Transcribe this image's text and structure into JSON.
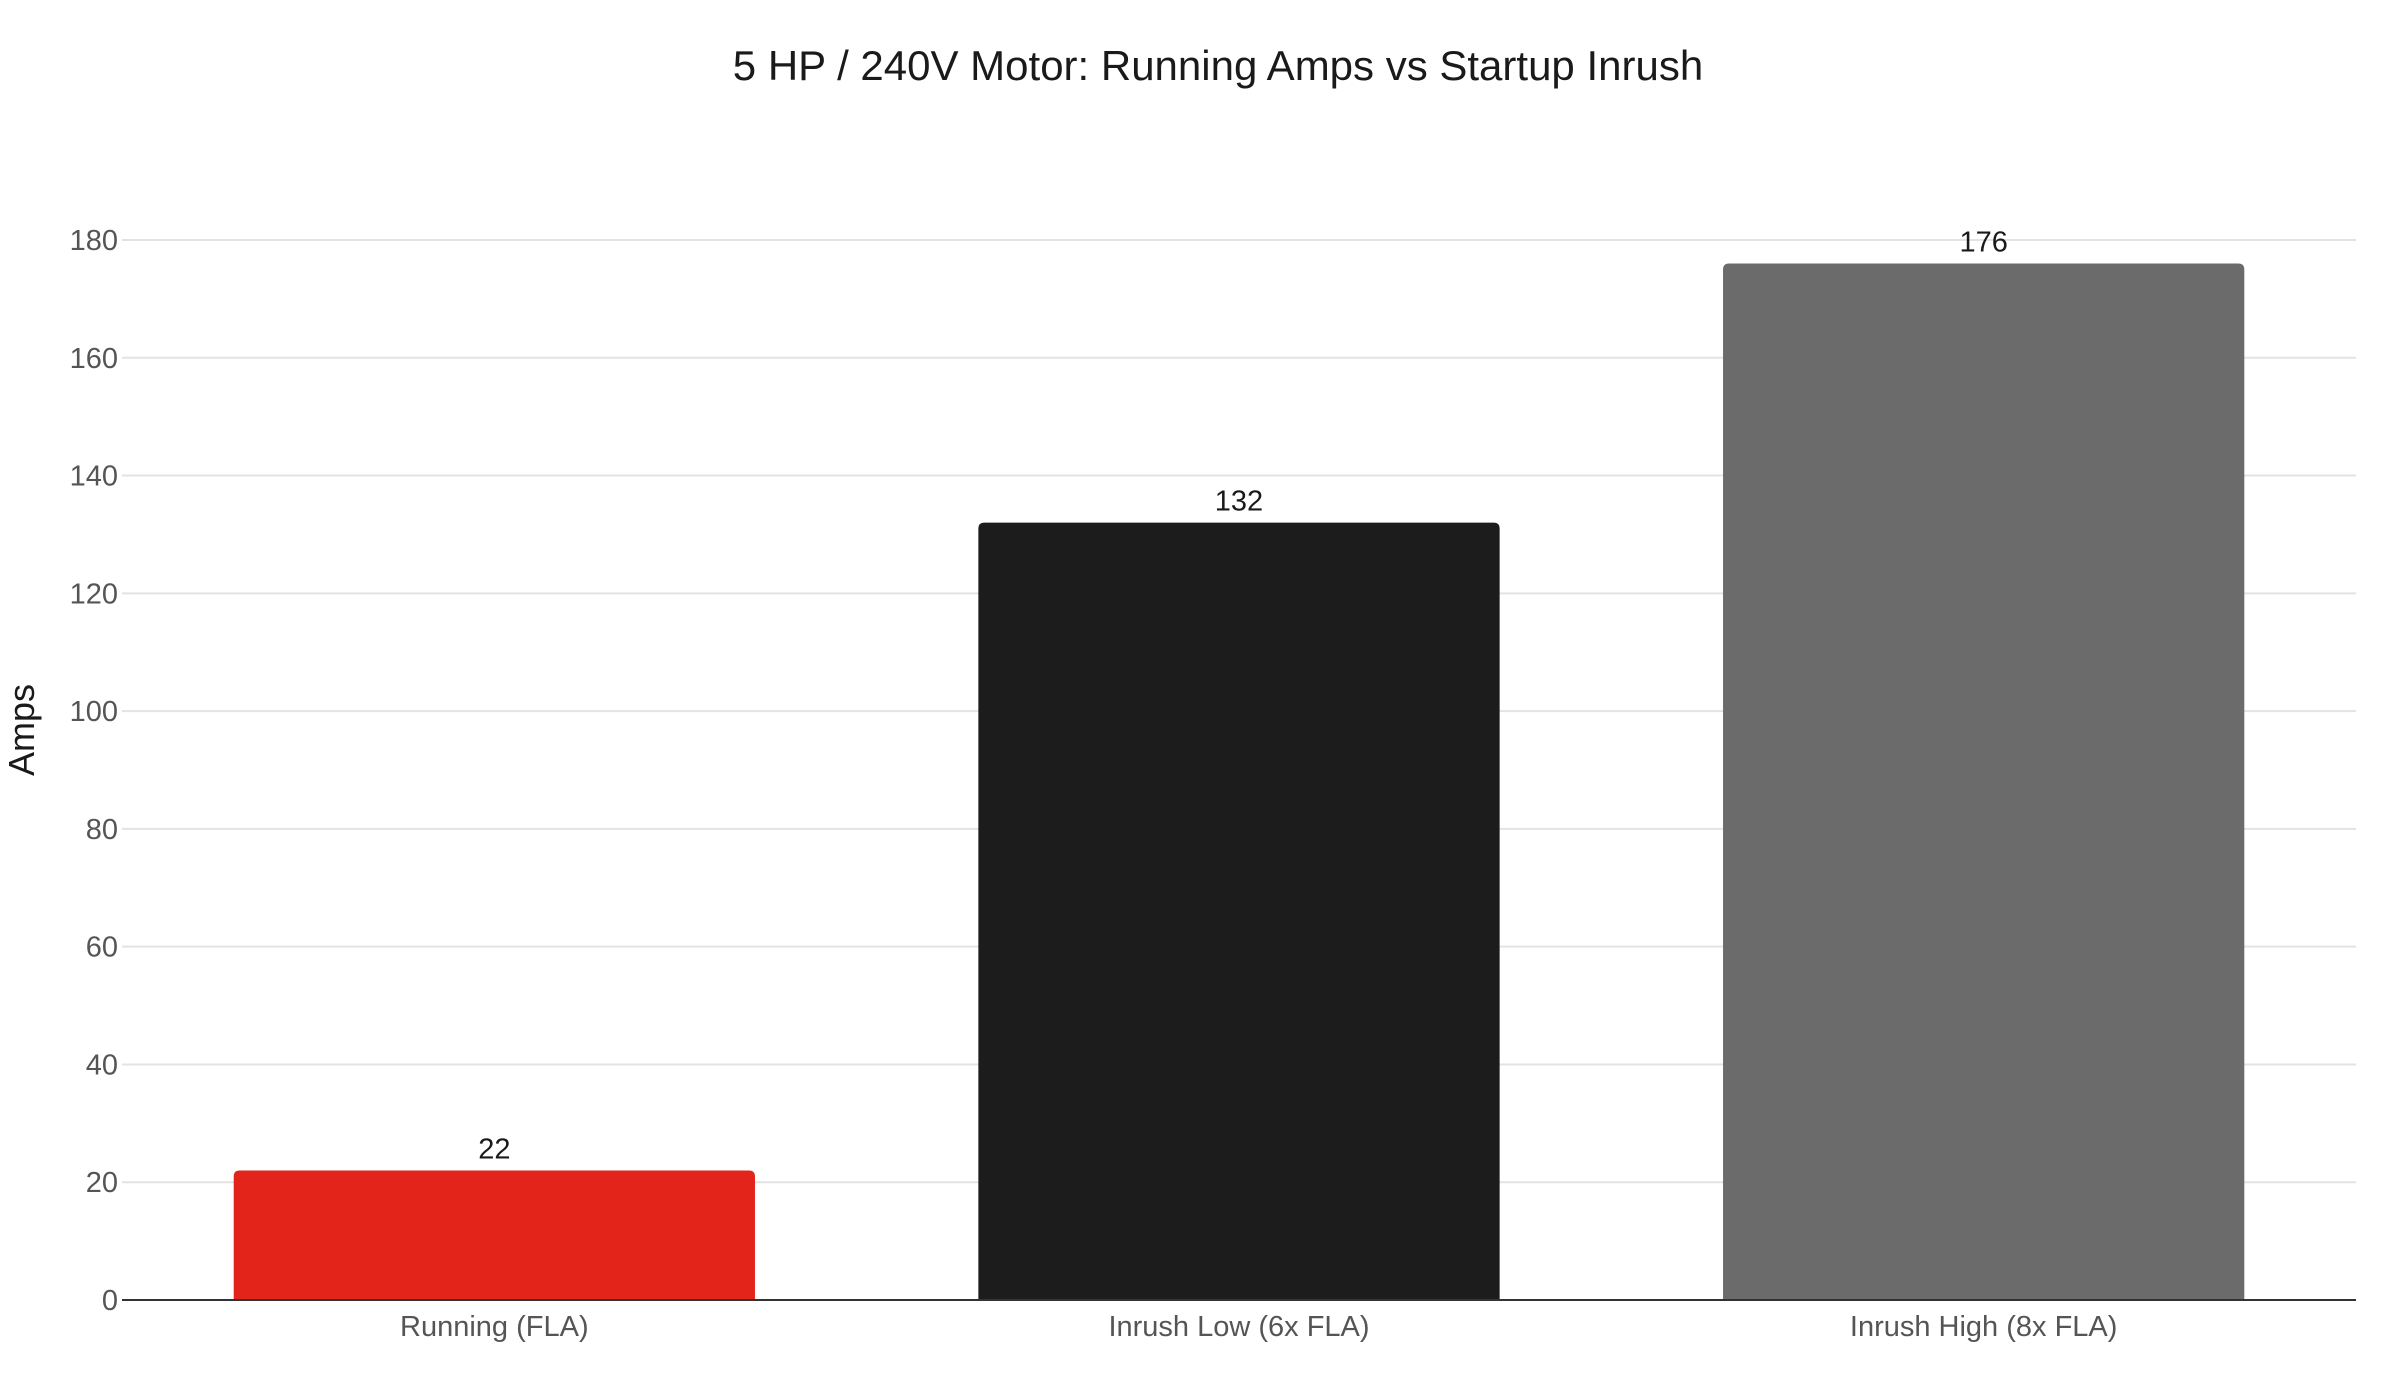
{
  "chart_data": {
    "type": "bar",
    "title": "5 HP / 240V Motor: Running Amps vs Startup Inrush",
    "xlabel": "",
    "ylabel": "Amps",
    "ylim": [
      0,
      180
    ],
    "yticks": [
      0,
      20,
      40,
      60,
      80,
      100,
      120,
      140,
      160,
      180
    ],
    "categories": [
      "Running (FLA)",
      "Inrush Low (6x FLA)",
      "Inrush High (8x FLA)"
    ],
    "values": [
      22,
      132,
      176
    ],
    "bar_colors": [
      "#e3241b",
      "#1c1c1c",
      "#6b6b6b"
    ],
    "data_labels": [
      "22",
      "132",
      "176"
    ],
    "grid": true,
    "legend": "none"
  }
}
